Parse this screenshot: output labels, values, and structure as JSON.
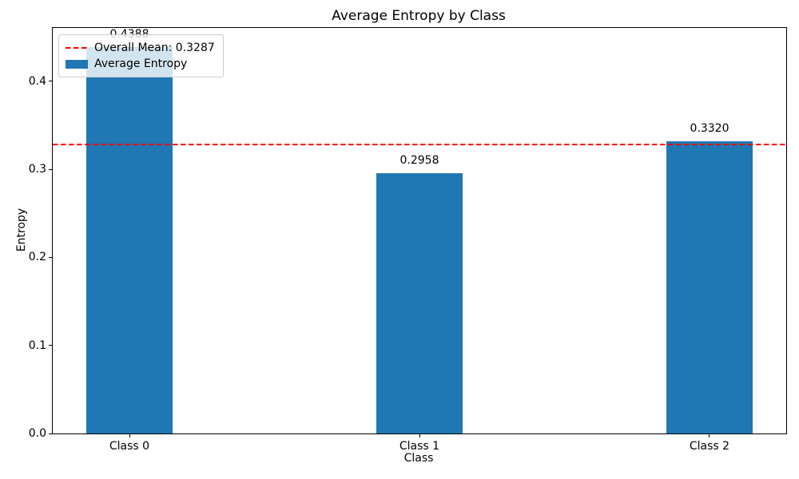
{
  "figure": {
    "background": "#ffffff"
  },
  "chart_data": {
    "type": "bar",
    "title": "Average Entropy by Class",
    "xlabel": "Class",
    "ylabel": "Entropy",
    "categories": [
      "Class 0",
      "Class 1",
      "Class 2"
    ],
    "values": [
      0.4388,
      0.2958,
      0.332
    ],
    "bar_labels": [
      "0.4388",
      "0.2958",
      "0.3320"
    ],
    "bar_color": "#1f77b4",
    "ylim": [
      0,
      0.46074
    ],
    "xlim": [
      -0.2645,
      2.2645
    ],
    "bar_width": 0.3,
    "ytick_values": [
      0.0,
      0.1,
      0.2,
      0.3,
      0.4
    ],
    "ytick_labels": [
      "0.0",
      "0.1",
      "0.2",
      "0.3",
      "0.4"
    ],
    "grid": false,
    "mean_line": {
      "value": 0.3287,
      "color": "#ff0000",
      "style": "dashed"
    },
    "legend": {
      "position": "upper-left",
      "entries": [
        {
          "label": "Overall Mean: 0.3287",
          "type": "dashed-line",
          "color": "#ff0000"
        },
        {
          "label": "Average Entropy",
          "type": "patch",
          "color": "#1f77b4"
        }
      ]
    }
  }
}
